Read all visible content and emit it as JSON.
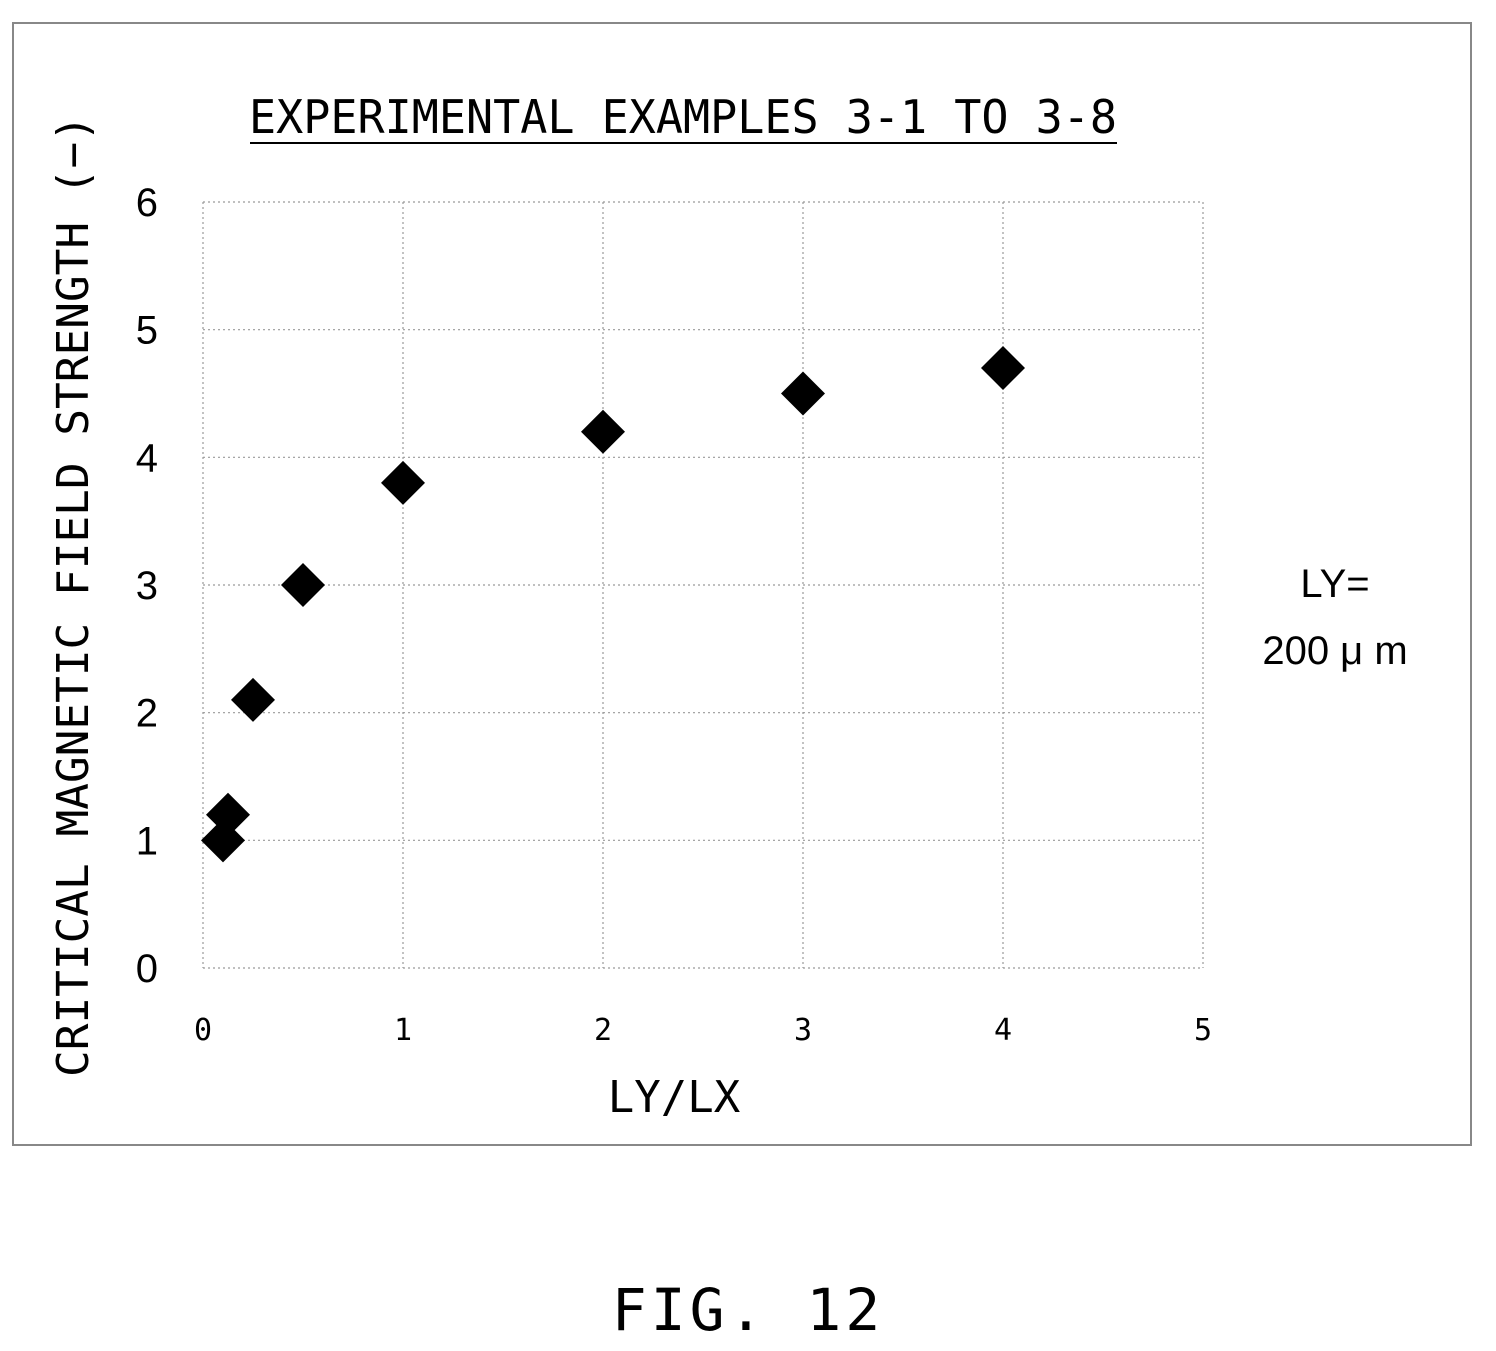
{
  "chart_data": {
    "type": "scatter",
    "title": "EXPERIMENTAL EXAMPLES 3-1 TO 3-8",
    "xlabel": "LY/LX",
    "ylabel": "CRITICAL MAGNETIC FIELD STRENGTH (−)",
    "xlim": [
      0,
      5
    ],
    "ylim": [
      0,
      6
    ],
    "xticks": [
      "0",
      "1",
      "2",
      "3",
      "4",
      "5"
    ],
    "yticks": [
      "0",
      "1",
      "2",
      "3",
      "4",
      "5",
      "6"
    ],
    "grid": true,
    "marker": "diamond",
    "marker_color": "#000000",
    "x": [
      0.1,
      0.125,
      0.25,
      0.5,
      1,
      2,
      3,
      4
    ],
    "y": [
      1.0,
      1.2,
      2.1,
      3.0,
      3.8,
      4.2,
      4.5,
      4.7
    ],
    "annotation_line1": "LY=",
    "annotation_line2": "200 μ m"
  },
  "figure_label": "FIG. 12"
}
